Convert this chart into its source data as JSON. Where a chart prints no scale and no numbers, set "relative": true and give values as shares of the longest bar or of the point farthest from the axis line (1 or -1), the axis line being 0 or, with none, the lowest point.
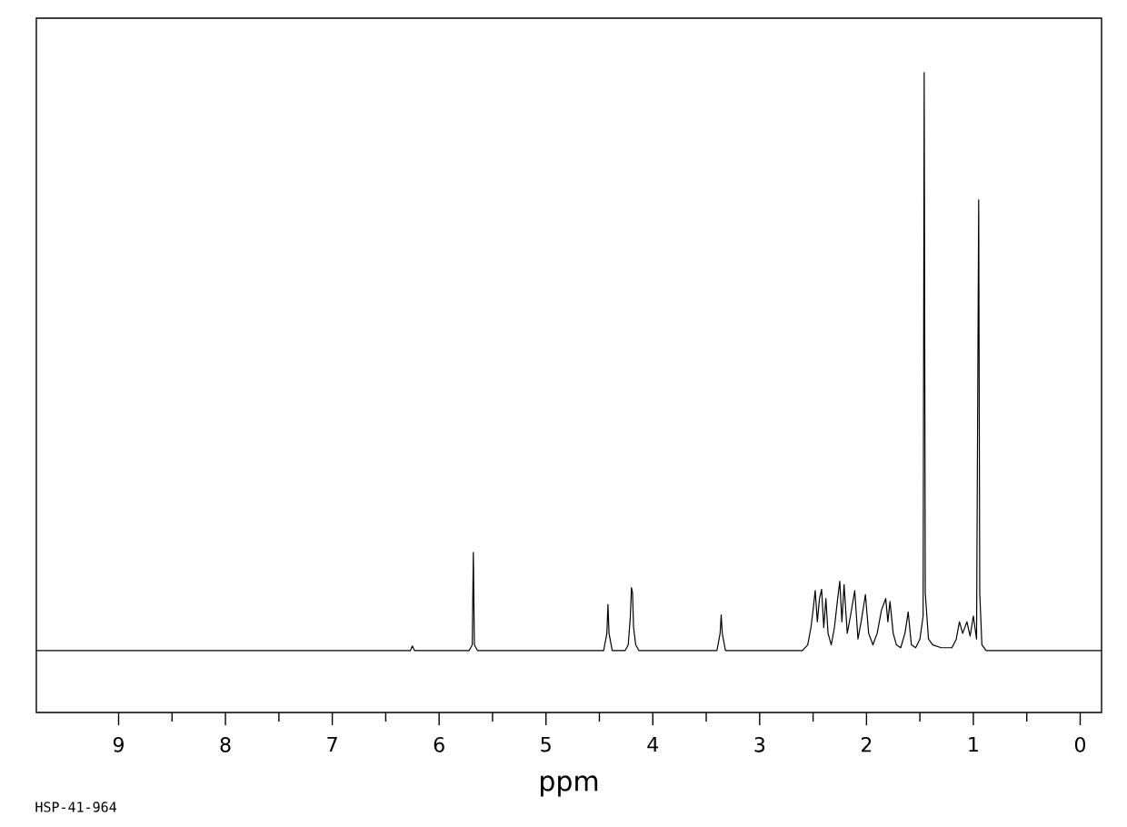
{
  "chart_data": {
    "type": "line",
    "xlabel": "ppm",
    "relative": true,
    "color": "#000000",
    "annotations": [
      "HSP-41-964"
    ],
    "xlim": [
      9.77,
      -0.2
    ],
    "xticks": [
      9,
      8,
      7,
      6,
      5,
      4,
      3,
      2,
      1,
      0
    ],
    "x": [
      9.77,
      6.27,
      6.25,
      6.23,
      5.72,
      5.69,
      5.68,
      5.67,
      5.64,
      4.46,
      4.43,
      4.42,
      4.41,
      4.38,
      4.26,
      4.23,
      4.21,
      4.2,
      4.19,
      4.18,
      4.16,
      4.13,
      3.4,
      3.37,
      3.36,
      3.35,
      3.32,
      2.6,
      2.55,
      2.52,
      2.5,
      2.48,
      2.46,
      2.44,
      2.42,
      2.4,
      2.38,
      2.36,
      2.33,
      2.3,
      2.27,
      2.25,
      2.23,
      2.21,
      2.18,
      2.15,
      2.11,
      2.08,
      2.05,
      2.01,
      1.98,
      1.94,
      1.9,
      1.86,
      1.82,
      1.8,
      1.78,
      1.75,
      1.72,
      1.68,
      1.64,
      1.61,
      1.58,
      1.54,
      1.5,
      1.47,
      1.46,
      1.45,
      1.42,
      1.38,
      1.3,
      1.2,
      1.16,
      1.13,
      1.1,
      1.06,
      1.03,
      1.0,
      0.97,
      0.95,
      0.94,
      0.92,
      0.88,
      -0.2
    ],
    "values": [
      0,
      0,
      0.008,
      0,
      0,
      0.01,
      0.17,
      0.01,
      0,
      0,
      0.03,
      0.08,
      0.03,
      0,
      0,
      0.01,
      0.06,
      0.109,
      0.1,
      0.04,
      0.01,
      0,
      0,
      0.03,
      0.062,
      0.03,
      0,
      0,
      0.01,
      0.04,
      0.07,
      0.104,
      0.05,
      0.09,
      0.106,
      0.04,
      0.09,
      0.03,
      0.01,
      0.04,
      0.09,
      0.12,
      0.05,
      0.114,
      0.03,
      0.06,
      0.104,
      0.02,
      0.05,
      0.097,
      0.03,
      0.01,
      0.03,
      0.07,
      0.09,
      0.05,
      0.085,
      0.03,
      0.01,
      0.005,
      0.03,
      0.067,
      0.01,
      0.005,
      0.02,
      0.06,
      1.0,
      0.1,
      0.02,
      0.01,
      0.005,
      0.005,
      0.02,
      0.05,
      0.03,
      0.05,
      0.025,
      0.06,
      0.02,
      0.78,
      0.1,
      0.01,
      0,
      0
    ]
  }
}
